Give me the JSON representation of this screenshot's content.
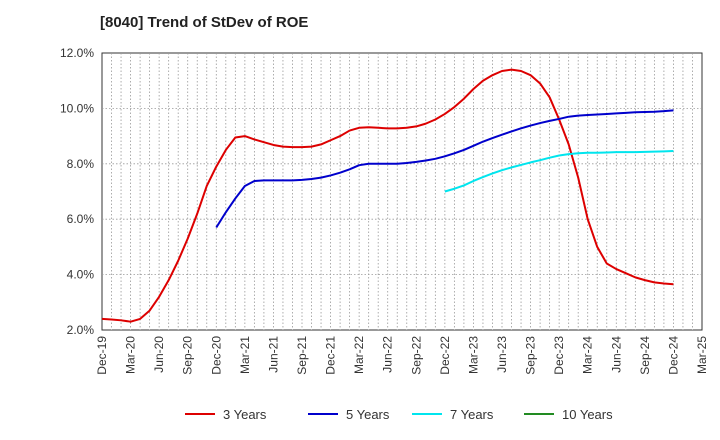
{
  "chart_data": {
    "type": "line",
    "title": "[8040]  Trend of StDev of ROE",
    "xlabel": "",
    "ylabel": "",
    "ylim": [
      2.0,
      12.0
    ],
    "y_ticks": [
      2.0,
      4.0,
      6.0,
      8.0,
      10.0,
      12.0
    ],
    "y_tick_labels": [
      "2.0%",
      "4.0%",
      "6.0%",
      "8.0%",
      "10.0%",
      "12.0%"
    ],
    "x_tick_labels": [
      "Dec-19",
      "Mar-20",
      "Jun-20",
      "Sep-20",
      "Dec-20",
      "Mar-21",
      "Jun-21",
      "Sep-21",
      "Dec-21",
      "Mar-22",
      "Jun-22",
      "Sep-22",
      "Dec-22",
      "Mar-23",
      "Jun-23",
      "Sep-23",
      "Dec-23",
      "Mar-24",
      "Jun-24",
      "Sep-24",
      "Dec-24",
      "Mar-25"
    ],
    "x_months": [
      "2019-12",
      "2020-01",
      "2020-02",
      "2020-03",
      "2020-04",
      "2020-05",
      "2020-06",
      "2020-07",
      "2020-08",
      "2020-09",
      "2020-10",
      "2020-11",
      "2020-12",
      "2021-01",
      "2021-02",
      "2021-03",
      "2021-04",
      "2021-05",
      "2021-06",
      "2021-07",
      "2021-08",
      "2021-09",
      "2021-10",
      "2021-11",
      "2021-12",
      "2022-01",
      "2022-02",
      "2022-03",
      "2022-04",
      "2022-05",
      "2022-06",
      "2022-07",
      "2022-08",
      "2022-09",
      "2022-10",
      "2022-11",
      "2022-12",
      "2023-01",
      "2023-02",
      "2023-03",
      "2023-04",
      "2023-05",
      "2023-06",
      "2023-07",
      "2023-08",
      "2023-09",
      "2023-10",
      "2023-11",
      "2023-12",
      "2024-01",
      "2024-02",
      "2024-03",
      "2024-04",
      "2024-05",
      "2024-06",
      "2024-07",
      "2024-08",
      "2024-09",
      "2024-10",
      "2024-11",
      "2024-12",
      "2025-01",
      "2025-02",
      "2025-03"
    ],
    "grid": true,
    "legend_position": "bottom",
    "series": [
      {
        "name": "3 Years",
        "color": "#dd0000",
        "start_index": 0,
        "values": [
          2.4,
          2.38,
          2.35,
          2.3,
          2.4,
          2.7,
          3.2,
          3.8,
          4.5,
          5.3,
          6.2,
          7.2,
          7.9,
          8.5,
          8.95,
          9.0,
          8.88,
          8.78,
          8.68,
          8.62,
          8.6,
          8.6,
          8.62,
          8.7,
          8.85,
          9.0,
          9.2,
          9.3,
          9.32,
          9.3,
          9.28,
          9.28,
          9.3,
          9.35,
          9.45,
          9.6,
          9.8,
          10.05,
          10.35,
          10.7,
          11.0,
          11.2,
          11.35,
          11.4,
          11.35,
          11.2,
          10.9,
          10.4,
          9.6,
          8.7,
          7.5,
          6.0,
          5.0,
          4.4,
          4.2,
          4.05,
          3.9,
          3.8,
          3.72,
          3.68,
          3.65
        ]
      },
      {
        "name": "5 Years",
        "color": "#0000cc",
        "start_index": 12,
        "values": [
          5.7,
          6.25,
          6.75,
          7.2,
          7.38,
          7.4,
          7.4,
          7.4,
          7.4,
          7.42,
          7.45,
          7.5,
          7.58,
          7.68,
          7.8,
          7.95,
          8.0,
          8.0,
          8.0,
          8.0,
          8.03,
          8.07,
          8.12,
          8.18,
          8.27,
          8.38,
          8.5,
          8.65,
          8.8,
          8.93,
          9.05,
          9.17,
          9.28,
          9.38,
          9.47,
          9.55,
          9.62,
          9.7,
          9.74,
          9.76,
          9.78,
          9.8,
          9.82,
          9.84,
          9.86,
          9.87,
          9.88,
          9.9,
          9.93
        ]
      },
      {
        "name": "7 Years",
        "color": "#00e5ee",
        "start_index": 36,
        "values": [
          7.0,
          7.1,
          7.22,
          7.38,
          7.52,
          7.65,
          7.77,
          7.87,
          7.96,
          8.05,
          8.13,
          8.22,
          8.3,
          8.35,
          8.38,
          8.4,
          8.4,
          8.41,
          8.42,
          8.42,
          8.42,
          8.43,
          8.44,
          8.45,
          8.46
        ]
      },
      {
        "name": "10 Years",
        "color": "#228b22",
        "start_index": 0,
        "values": []
      }
    ]
  }
}
